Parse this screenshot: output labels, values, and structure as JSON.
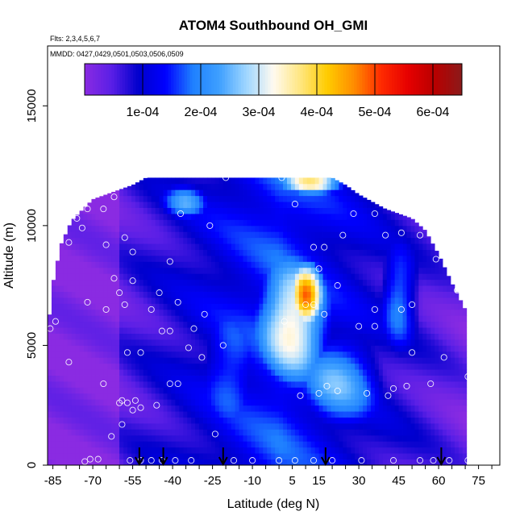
{
  "chart_data": {
    "type": "heatmap",
    "title": "ATOM4 Southbound OH_GMI",
    "subtitle_flights": "Flts: 2,3,4,5,6,7",
    "subtitle_dates": "MMDD: 0427,0429,0501,0503,0506,0509",
    "xlabel": "Latitude (deg N)",
    "ylabel": "Altitude (m)",
    "xlim": [
      -87,
      83
    ],
    "ylim": [
      0,
      17500
    ],
    "x_ticks": [
      "-85",
      "-70",
      "-55",
      "-40",
      "-25",
      "-10",
      "5",
      "15",
      "30",
      "45",
      "60",
      "75"
    ],
    "x_tick_values": [
      -85,
      -70,
      -55,
      -40,
      -25,
      -10,
      5,
      15,
      30,
      45,
      60,
      75
    ],
    "x_minor_step": 5,
    "y_ticks": [
      "0",
      "5000",
      "10000",
      "15000"
    ],
    "y_tick_values": [
      0,
      5000,
      10000,
      15000
    ],
    "colorbar": {
      "min": 0,
      "max": 0.00065,
      "tick_labels": [
        "1e-04",
        "2e-04",
        "3e-04",
        "4e-04",
        "5e-04",
        "6e-04"
      ],
      "tick_values": [
        0.0001,
        0.0002,
        0.0003,
        0.0004,
        0.0005,
        0.0006
      ],
      "colors": [
        "#8a2be2",
        "#5a1fe6",
        "#0000cd",
        "#0000ff",
        "#1e7fff",
        "#3fa0ff",
        "#9fd6ff",
        "#fffaf0",
        "#ffe680",
        "#ffcc00",
        "#ff8c00",
        "#ff2a00",
        "#e60000",
        "#b80000",
        "#8b1a1a"
      ]
    },
    "envelope_ymax": [
      {
        "x": -87,
        "y": 5500
      },
      {
        "x": -85,
        "y": 7600
      },
      {
        "x": -82,
        "y": 9200
      },
      {
        "x": -78,
        "y": 10200
      },
      {
        "x": -70,
        "y": 11100
      },
      {
        "x": -60,
        "y": 11500
      },
      {
        "x": -55,
        "y": 11700
      },
      {
        "x": -50,
        "y": 12000
      },
      {
        "x": -42,
        "y": 12000
      },
      {
        "x": -35,
        "y": 12000
      },
      {
        "x": -25,
        "y": 12000
      },
      {
        "x": -10,
        "y": 12000
      },
      {
        "x": 5,
        "y": 12000
      },
      {
        "x": 20,
        "y": 12000
      },
      {
        "x": 25,
        "y": 11700
      },
      {
        "x": 30,
        "y": 11300
      },
      {
        "x": 40,
        "y": 10700
      },
      {
        "x": 50,
        "y": 10300
      },
      {
        "x": 55,
        "y": 9800
      },
      {
        "x": 60,
        "y": 8800
      },
      {
        "x": 65,
        "y": 7600
      },
      {
        "x": 70,
        "y": 6500
      },
      {
        "x": 71,
        "y": 500
      }
    ],
    "oh_field_centers": [
      {
        "x": 10,
        "y": 7000,
        "value": 0.00048,
        "spread_x": 7,
        "spread_y": 1500
      },
      {
        "x": 12,
        "y": 11800,
        "value": 0.00036,
        "spread_x": 13,
        "spread_y": 500
      },
      {
        "x": 5,
        "y": 6000,
        "value": 0.00035,
        "spread_x": 15,
        "spread_y": 3000
      },
      {
        "x": 22,
        "y": 3500,
        "value": 0.00024,
        "spread_x": 18,
        "spread_y": 2400
      },
      {
        "x": -18,
        "y": 4000,
        "value": 0.00018,
        "spread_x": 14,
        "spread_y": 3500
      },
      {
        "x": 45,
        "y": 7000,
        "value": 0.0002,
        "spread_x": 8,
        "spread_y": 2500
      },
      {
        "x": -35,
        "y": 11000,
        "value": 0.00022,
        "spread_x": 10,
        "spread_y": 800
      }
    ],
    "sample_points": [
      {
        "x": -84,
        "y": 9500
      },
      {
        "x": -79,
        "y": 9300
      },
      {
        "x": -76,
        "y": 10300
      },
      {
        "x": -74,
        "y": 9900
      },
      {
        "x": -72,
        "y": 10700
      },
      {
        "x": -66,
        "y": 10700
      },
      {
        "x": -62,
        "y": 11200
      },
      {
        "x": -65,
        "y": 9200
      },
      {
        "x": -58,
        "y": 9500
      },
      {
        "x": -55,
        "y": 8900
      },
      {
        "x": -62,
        "y": 7800
      },
      {
        "x": -60,
        "y": 7200
      },
      {
        "x": -72,
        "y": 6800
      },
      {
        "x": -65,
        "y": 6500
      },
      {
        "x": -58,
        "y": 6700
      },
      {
        "x": -55,
        "y": 7700
      },
      {
        "x": -48,
        "y": 6500
      },
      {
        "x": -45,
        "y": 7200
      },
      {
        "x": -41,
        "y": 8500
      },
      {
        "x": -38,
        "y": 6800
      },
      {
        "x": -32,
        "y": 5700
      },
      {
        "x": -28,
        "y": 6300
      },
      {
        "x": -41,
        "y": 5600
      },
      {
        "x": -44,
        "y": 5600
      },
      {
        "x": -34,
        "y": 4900
      },
      {
        "x": -29,
        "y": 4500
      },
      {
        "x": -21,
        "y": 5000
      },
      {
        "x": -52,
        "y": 4700
      },
      {
        "x": -57,
        "y": 4700
      },
      {
        "x": -79,
        "y": 4300
      },
      {
        "x": -86,
        "y": 5700
      },
      {
        "x": -84,
        "y": 6000
      },
      {
        "x": -41,
        "y": 3400
      },
      {
        "x": -38,
        "y": 3400
      },
      {
        "x": -59,
        "y": 2700
      },
      {
        "x": -55,
        "y": 2300
      },
      {
        "x": -54,
        "y": 2700
      },
      {
        "x": -52,
        "y": 2400
      },
      {
        "x": -57,
        "y": 2600
      },
      {
        "x": -60,
        "y": 2600
      },
      {
        "x": -59,
        "y": 1700
      },
      {
        "x": -37,
        "y": 10500
      },
      {
        "x": -26,
        "y": 10000
      },
      {
        "x": -20,
        "y": 12000
      },
      {
        "x": 1,
        "y": 12000
      },
      {
        "x": 6,
        "y": 10900
      },
      {
        "x": 13,
        "y": 9100
      },
      {
        "x": 15,
        "y": 8200
      },
      {
        "x": 17,
        "y": 9100
      },
      {
        "x": 13,
        "y": 6700
      },
      {
        "x": 10,
        "y": 6700
      },
      {
        "x": 17,
        "y": 6300
      },
      {
        "x": 22,
        "y": 7500
      },
      {
        "x": 24,
        "y": 9600
      },
      {
        "x": 28,
        "y": 10500
      },
      {
        "x": 36,
        "y": 10500
      },
      {
        "x": 40,
        "y": 9600
      },
      {
        "x": 46,
        "y": 9700
      },
      {
        "x": 53,
        "y": 9600
      },
      {
        "x": 59,
        "y": 8600
      },
      {
        "x": 67,
        "y": 7300
      },
      {
        "x": 50,
        "y": 6700
      },
      {
        "x": 46,
        "y": 6500
      },
      {
        "x": 36,
        "y": 6500
      },
      {
        "x": 36,
        "y": 5800
      },
      {
        "x": 30,
        "y": 5800
      },
      {
        "x": 50,
        "y": 4700
      },
      {
        "x": 62,
        "y": 4500
      },
      {
        "x": 71,
        "y": 3700
      },
      {
        "x": 48,
        "y": 3300
      },
      {
        "x": 57,
        "y": 3400
      },
      {
        "x": 43,
        "y": 3200
      },
      {
        "x": 41,
        "y": 2900
      },
      {
        "x": 33,
        "y": 3000
      },
      {
        "x": 22,
        "y": 3100
      },
      {
        "x": 18,
        "y": 3300
      },
      {
        "x": 15,
        "y": 3000
      },
      {
        "x": 8,
        "y": 2900
      },
      {
        "x": 2,
        "y": 6000
      },
      {
        "x": -46,
        "y": 2500
      },
      {
        "x": -63,
        "y": 1200
      },
      {
        "x": -56,
        "y": 200
      },
      {
        "x": -52,
        "y": 200
      },
      {
        "x": -48,
        "y": 200
      },
      {
        "x": -44,
        "y": 200
      },
      {
        "x": -39,
        "y": 200
      },
      {
        "x": -33,
        "y": 200
      },
      {
        "x": -24,
        "y": 1300
      },
      {
        "x": -17,
        "y": 200
      },
      {
        "x": -10,
        "y": 200
      },
      {
        "x": 0,
        "y": 200
      },
      {
        "x": 6,
        "y": 200
      },
      {
        "x": 13,
        "y": 200
      },
      {
        "x": 20,
        "y": 200
      },
      {
        "x": 31,
        "y": 200
      },
      {
        "x": 43,
        "y": 200
      },
      {
        "x": 53,
        "y": 200
      },
      {
        "x": 58,
        "y": 200
      },
      {
        "x": 64,
        "y": 200
      },
      {
        "x": 71,
        "y": 200
      },
      {
        "x": -68,
        "y": 250
      },
      {
        "x": -71,
        "y": 250
      },
      {
        "x": -73,
        "y": 150
      },
      {
        "x": -66,
        "y": 3400
      }
    ],
    "arrows": [
      {
        "x": -52.5,
        "label": "flight marker"
      },
      {
        "x": -43.5,
        "label": "flight marker"
      },
      {
        "x": -21,
        "label": "flight marker"
      },
      {
        "x": 17.5,
        "label": "flight marker"
      },
      {
        "x": 61,
        "label": "flight marker"
      }
    ]
  }
}
